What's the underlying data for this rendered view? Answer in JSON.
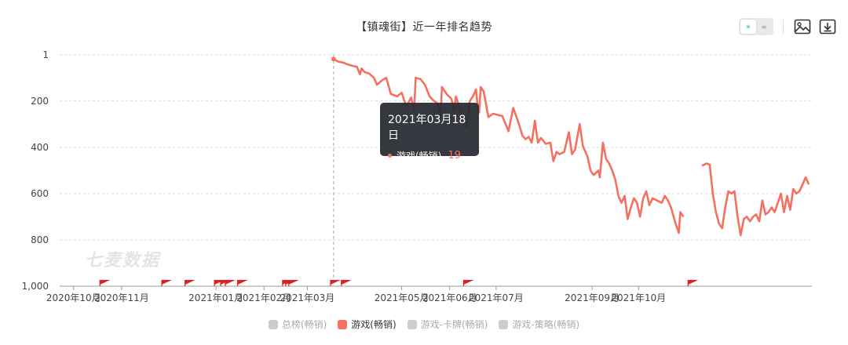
{
  "title": "【镇魂街】近一年排名趋势",
  "toolbar": {
    "toggle_on": "✳",
    "toggle_off": "≡",
    "icons": [
      "image-icon",
      "download-icon"
    ]
  },
  "tooltip": {
    "date": "2021年03月18日",
    "series": "游戏(畅销)",
    "value": "19"
  },
  "watermark": "七麦数据",
  "legend": [
    {
      "label": "总榜(畅销)",
      "active": false
    },
    {
      "label": "游戏(畅销)",
      "active": true
    },
    {
      "label": "游戏-卡牌(畅销)",
      "active": false
    },
    {
      "label": "游戏-策略(畅销)",
      "active": false
    }
  ],
  "chart_data": {
    "type": "line",
    "title": "【镇魂街】近一年排名趋势",
    "y_inverted": true,
    "ylim": [
      1,
      1000
    ],
    "y_ticks": [
      "1",
      "200",
      "400",
      "600",
      "800",
      "1,000"
    ],
    "y_tick_values": [
      1,
      200,
      400,
      600,
      800,
      1000
    ],
    "x_ticks": [
      "2020年10月",
      "2020年11月",
      "2021年01月",
      "2021年02月",
      "2021年03月",
      "2021年05月",
      "2021年06月",
      "2021年07月",
      "2021年09月",
      "2021年10月"
    ],
    "x_tick_dates": [
      "2020-10-01",
      "2020-11-01",
      "2021-01-01",
      "2021-02-01",
      "2021-03-01",
      "2021-05-01",
      "2021-06-01",
      "2021-07-01",
      "2021-09-01",
      "2021-10-01"
    ],
    "grid": true,
    "color": "#f47060",
    "series": [
      {
        "name": "游戏(畅销)",
        "segments": [
          [
            [
              "2021-03-18",
              19
            ],
            [
              "2021-03-21",
              30
            ],
            [
              "2021-03-24",
              34
            ],
            [
              "2021-03-27",
              42
            ],
            [
              "2021-03-30",
              48
            ],
            [
              "2021-04-02",
              52
            ],
            [
              "2021-04-04",
              85
            ],
            [
              "2021-04-05",
              60
            ],
            [
              "2021-04-07",
              75
            ],
            [
              "2021-04-10",
              82
            ],
            [
              "2021-04-13",
              100
            ],
            [
              "2021-04-15",
              130
            ],
            [
              "2021-04-18",
              112
            ],
            [
              "2021-04-21",
              100
            ],
            [
              "2021-04-24",
              170
            ],
            [
              "2021-04-28",
              180
            ],
            [
              "2021-05-01",
              165
            ],
            [
              "2021-05-04",
              225
            ],
            [
              "2021-05-07",
              185
            ],
            [
              "2021-05-09",
              242
            ],
            [
              "2021-05-10",
              100
            ],
            [
              "2021-05-13",
              105
            ],
            [
              "2021-05-16",
              130
            ],
            [
              "2021-05-19",
              180
            ],
            [
              "2021-05-21",
              195
            ],
            [
              "2021-05-24",
              210
            ],
            [
              "2021-05-26",
              275
            ],
            [
              "2021-05-27",
              140
            ],
            [
              "2021-05-30",
              170
            ],
            [
              "2021-06-02",
              190
            ],
            [
              "2021-06-04",
              240
            ],
            [
              "2021-06-05",
              180
            ],
            [
              "2021-06-07",
              220
            ],
            [
              "2021-06-10",
              310
            ],
            [
              "2021-06-12",
              310
            ],
            [
              "2021-06-14",
              200
            ],
            [
              "2021-06-16",
              180
            ],
            [
              "2021-06-18",
              150
            ],
            [
              "2021-06-19",
              220
            ],
            [
              "2021-06-20",
              250
            ],
            [
              "2021-06-21",
              140
            ],
            [
              "2021-06-23",
              160
            ],
            [
              "2021-06-26",
              270
            ],
            [
              "2021-06-29",
              255
            ],
            [
              "2021-07-02",
              260
            ],
            [
              "2021-07-05",
              265
            ],
            [
              "2021-07-09",
              330
            ],
            [
              "2021-07-12",
              230
            ],
            [
              "2021-07-15",
              285
            ],
            [
              "2021-07-18",
              350
            ],
            [
              "2021-07-20",
              365
            ],
            [
              "2021-07-22",
              355
            ],
            [
              "2021-07-24",
              380
            ],
            [
              "2021-07-26",
              285
            ],
            [
              "2021-07-28",
              380
            ],
            [
              "2021-07-30",
              360
            ],
            [
              "2021-08-02",
              385
            ],
            [
              "2021-08-05",
              380
            ],
            [
              "2021-08-07",
              460
            ],
            [
              "2021-08-09",
              420
            ],
            [
              "2021-08-11",
              430
            ],
            [
              "2021-08-14",
              420
            ],
            [
              "2021-08-17",
              335
            ],
            [
              "2021-08-19",
              430
            ],
            [
              "2021-08-21",
              410
            ],
            [
              "2021-08-24",
              300
            ],
            [
              "2021-08-26",
              395
            ],
            [
              "2021-08-29",
              440
            ],
            [
              "2021-08-31",
              500
            ],
            [
              "2021-09-02",
              520
            ],
            [
              "2021-09-05",
              500
            ],
            [
              "2021-09-06",
              530
            ],
            [
              "2021-09-08",
              380
            ],
            [
              "2021-09-10",
              450
            ],
            [
              "2021-09-12",
              470
            ],
            [
              "2021-09-14",
              500
            ],
            [
              "2021-09-16",
              540
            ],
            [
              "2021-09-18",
              610
            ],
            [
              "2021-09-20",
              640
            ],
            [
              "2021-09-22",
              610
            ],
            [
              "2021-09-24",
              710
            ],
            [
              "2021-09-26",
              660
            ],
            [
              "2021-09-28",
              620
            ],
            [
              "2021-09-30",
              640
            ],
            [
              "2021-10-02",
              700
            ],
            [
              "2021-10-04",
              620
            ],
            [
              "2021-10-06",
              590
            ],
            [
              "2021-10-08",
              650
            ],
            [
              "2021-10-10",
              620
            ],
            [
              "2021-10-13",
              630
            ],
            [
              "2021-10-16",
              640
            ],
            [
              "2021-10-18",
              610
            ],
            [
              "2021-10-20",
              630
            ],
            [
              "2021-10-22",
              660
            ],
            [
              "2021-10-25",
              730
            ],
            [
              "2021-10-27",
              770
            ],
            [
              "2021-10-28",
              680
            ],
            [
              "2021-10-30",
              700
            ]
          ],
          [
            [
              "2021-11-11",
              480
            ],
            [
              "2021-11-14",
              470
            ],
            [
              "2021-11-16",
              475
            ],
            [
              "2021-11-18",
              600
            ],
            [
              "2021-11-20",
              680
            ],
            [
              "2021-11-22",
              730
            ],
            [
              "2021-11-24",
              750
            ],
            [
              "2021-11-26",
              660
            ],
            [
              "2021-11-28",
              590
            ],
            [
              "2021-11-30",
              600
            ],
            [
              "2021-12-02",
              590
            ],
            [
              "2021-12-04",
              700
            ],
            [
              "2021-12-06",
              780
            ],
            [
              "2021-12-08",
              710
            ],
            [
              "2021-12-10",
              700
            ],
            [
              "2021-12-12",
              720
            ],
            [
              "2021-12-14",
              700
            ],
            [
              "2021-12-16",
              690
            ],
            [
              "2021-12-18",
              720
            ],
            [
              "2021-12-20",
              630
            ],
            [
              "2021-12-22",
              690
            ],
            [
              "2021-12-24",
              680
            ],
            [
              "2021-12-26",
              660
            ],
            [
              "2021-12-28",
              680
            ],
            [
              "2021-12-30",
              640
            ],
            [
              "2022-01-01",
              600
            ],
            [
              "2022-01-03",
              680
            ],
            [
              "2022-01-05",
              610
            ],
            [
              "2022-01-07",
              670
            ],
            [
              "2022-01-09",
              580
            ],
            [
              "2022-01-11",
              600
            ],
            [
              "2022-01-13",
              590
            ],
            [
              "2022-01-15",
              560
            ],
            [
              "2022-01-17",
              530
            ],
            [
              "2022-01-19",
              560
            ]
          ]
        ]
      }
    ],
    "event_flags": [
      "2020-10-18",
      "2020-11-27",
      "2020-12-12",
      "2020-12-31",
      "2021-01-04",
      "2021-01-07",
      "2021-01-15",
      "2021-02-13",
      "2021-02-15",
      "2021-02-17",
      "2021-03-16",
      "2021-03-23",
      "2021-06-10",
      "2021-11-02"
    ],
    "highlight": {
      "date": "2021-03-18",
      "value": 19
    }
  }
}
